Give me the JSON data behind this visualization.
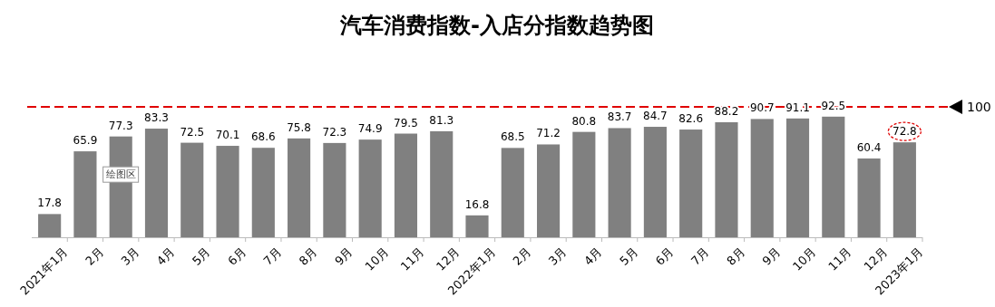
{
  "chart_data": {
    "type": "bar",
    "title": "汽车消费指数-入店分指数趋势图",
    "categories": [
      "2021年1月",
      "2月",
      "3月",
      "4月",
      "5月",
      "6月",
      "7月",
      "8月",
      "9月",
      "10月",
      "11月",
      "12月",
      "2022年1月",
      "2月",
      "3月",
      "4月",
      "5月",
      "6月",
      "7月",
      "8月",
      "9月",
      "10月",
      "11月",
      "12月",
      "2023年1月"
    ],
    "values": [
      17.8,
      65.9,
      77.3,
      83.3,
      72.5,
      70.1,
      68.6,
      75.8,
      72.3,
      74.9,
      79.5,
      81.3,
      16.8,
      68.5,
      71.2,
      80.8,
      83.7,
      84.7,
      82.6,
      88.2,
      90.7,
      91.1,
      92.5,
      60.4,
      72.8
    ],
    "color": "#808080",
    "data_labels": true,
    "ylim": [
      0,
      100
    ],
    "tick_labels": "x",
    "ref_lines": [
      {
        "axis": "y",
        "value": 100,
        "label": "100",
        "color": "#e00000",
        "line_style": "dashed"
      }
    ],
    "annotations": [
      {
        "text": "绘图区",
        "x": "3月",
        "y": 45
      }
    ]
  }
}
